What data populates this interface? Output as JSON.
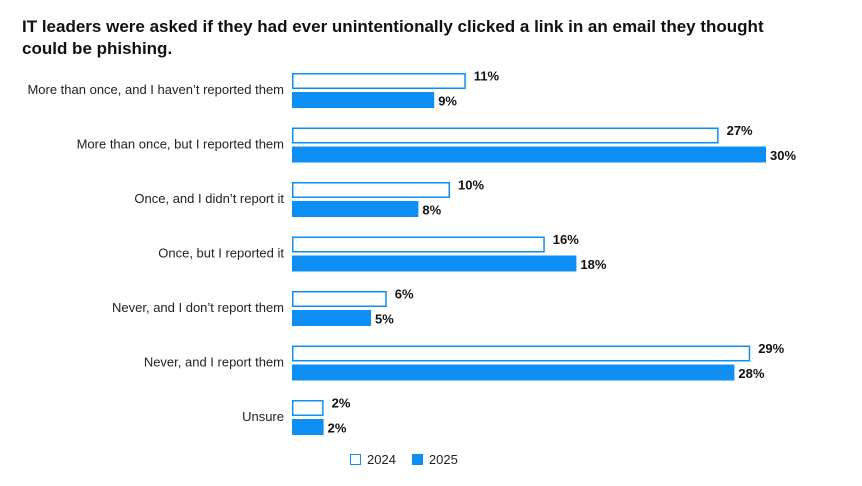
{
  "chart_data": {
    "type": "bar",
    "orientation": "horizontal",
    "title": "IT leaders were asked if they had ever unintentionally clicked a link in an email they thought could be phishing.",
    "categories": [
      "More than once, and I haven’t reported them",
      "More than once, but I reported them",
      "Once, and I didn’t report it",
      "Once, but I reported it",
      "Never, and I don’t report them",
      "Never, and I report them",
      "Unsure"
    ],
    "series": [
      {
        "name": "2024",
        "values": [
          11,
          27,
          10,
          16,
          6,
          29,
          2
        ],
        "labels": [
          "11%",
          "27%",
          "10%",
          "16%",
          "6%",
          "29%",
          "2%"
        ],
        "style": "outline"
      },
      {
        "name": "2025",
        "values": [
          9,
          30,
          8,
          18,
          5,
          28,
          2
        ],
        "labels": [
          "9%",
          "30%",
          "8%",
          "18%",
          "5%",
          "28%",
          "2%"
        ],
        "style": "filled"
      }
    ],
    "unit": "%",
    "xlim": [
      0,
      30
    ],
    "grid": false,
    "legend_position": "bottom",
    "colors": {
      "accent": "#0d8ef5",
      "outline_fill": "#ffffff",
      "text": "#111111"
    }
  }
}
